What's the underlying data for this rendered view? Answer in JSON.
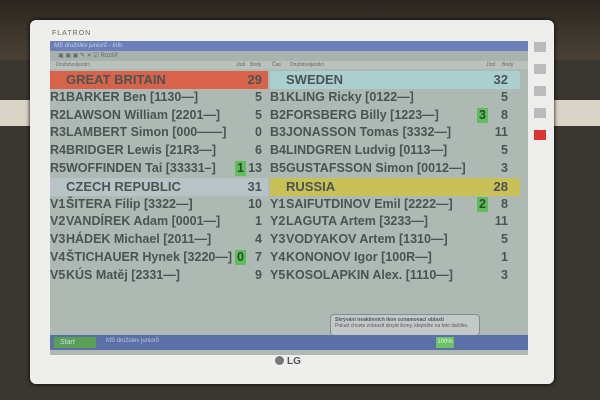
{
  "monitor": {
    "brand": "FLATRON",
    "logo": "LG"
  },
  "window": {
    "title": "MS družstev juniorů - Info",
    "toolbar": "Rozšíř",
    "headers": {
      "team": "Družstvo/jezdci",
      "rides": "Jízd",
      "points": "Body",
      "time": "Čas"
    }
  },
  "left": [
    {
      "name": "GREAT BRITAIN",
      "points": "29",
      "color": "#d9634a",
      "riders": [
        {
          "gate": "R1",
          "name": "BARKER Ben [1130—]",
          "pts": "5"
        },
        {
          "gate": "R2",
          "name": "LAWSON William [2201—]",
          "pts": "5"
        },
        {
          "gate": "R3",
          "name": "LAMBERT Simon [000——]",
          "pts": "0"
        },
        {
          "gate": "R4",
          "name": "BRIDGER Lewis [21R3—]",
          "pts": "6"
        },
        {
          "gate": "R5",
          "name": "WOFFINDEN Tai [33331–]",
          "pts": "13",
          "bonus": "1"
        }
      ]
    },
    {
      "name": "CZECH REPUBLIC",
      "points": "31",
      "color": "#b7c3c6",
      "riders": [
        {
          "gate": "V1",
          "name": "ŠITERA Filip [3322—]",
          "pts": "10"
        },
        {
          "gate": "V2",
          "name": "VANDÍREK Adam [0001—]",
          "pts": "1"
        },
        {
          "gate": "V3",
          "name": "HÁDEK Michael [2011—]",
          "pts": "4"
        },
        {
          "gate": "V4",
          "name": "ŠTICHAUER Hynek [3220—]",
          "pts": "7",
          "bonus": "0"
        },
        {
          "gate": "V5",
          "name": "KÚS Matěj [2331—]",
          "pts": "9"
        }
      ]
    }
  ],
  "right": [
    {
      "name": "SWEDEN",
      "points": "32",
      "color": "#a9cfcf",
      "riders": [
        {
          "gate": "B1",
          "name": "KLING Ricky [0122—]",
          "pts": "5"
        },
        {
          "gate": "B2",
          "name": "FORSBERG Billy [1223—]",
          "pts": "8",
          "bonus": "3"
        },
        {
          "gate": "B3",
          "name": "JONASSON Tomas [3332—]",
          "pts": "11"
        },
        {
          "gate": "B4",
          "name": "LINDGREN Ludvig [0113—]",
          "pts": "5"
        },
        {
          "gate": "B5",
          "name": "GUSTAFSSON Simon [0012—]",
          "pts": "3"
        }
      ]
    },
    {
      "name": "RUSSIA",
      "points": "28",
      "color": "#c9c158",
      "riders": [
        {
          "gate": "Y1",
          "name": "SAIFUTDINOV Emil [2222—]",
          "pts": "8",
          "bonus": "2"
        },
        {
          "gate": "Y2",
          "name": "LAGUTA Artem [3233—]",
          "pts": "11"
        },
        {
          "gate": "Y3",
          "name": "VODYAKOV Artem [1310—]",
          "pts": "5"
        },
        {
          "gate": "Y4",
          "name": "KONONOV Igor [100R—]",
          "pts": "1"
        },
        {
          "gate": "Y5",
          "name": "KOSOLAPKIN Alex. [1110—]",
          "pts": "3"
        }
      ]
    }
  ],
  "taskbar": {
    "start": "Start",
    "task": "MS družstev juniorů",
    "zoom": "100%"
  },
  "balloon": {
    "title": "Skrývání neaktivních ikon oznamovací oblasti",
    "text": "Pokud chcete zobrazit skryté ikony, klepněte na toto tlačítko."
  }
}
